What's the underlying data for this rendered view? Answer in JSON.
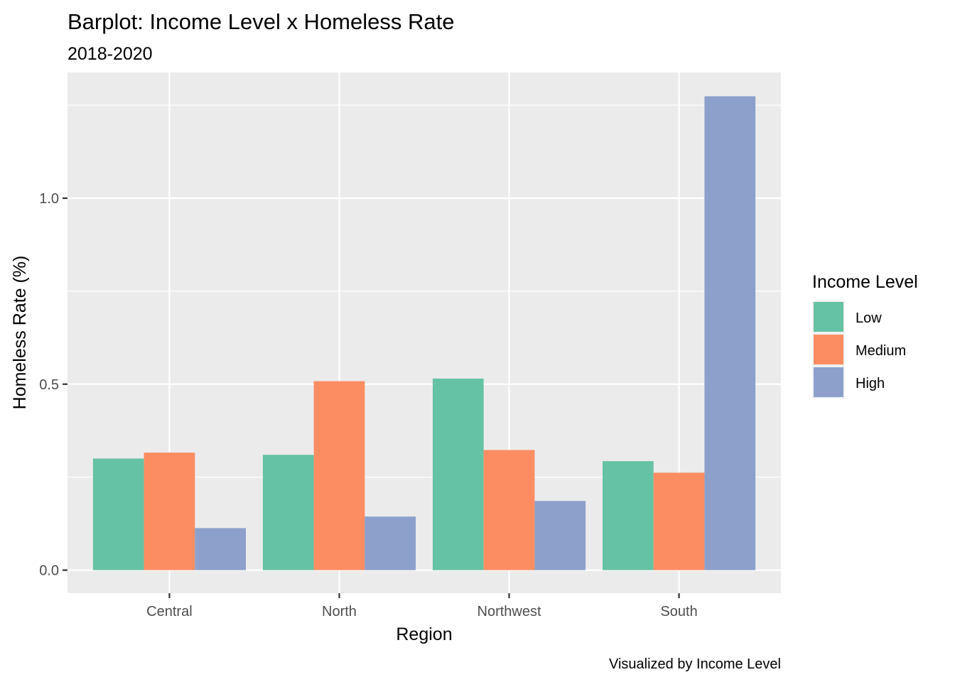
{
  "chart_data": {
    "type": "bar",
    "title": "Barplot: Income Level x Homeless Rate",
    "subtitle": "2018-2020",
    "xlabel": "Region",
    "ylabel": "Homeless Rate (%)",
    "caption": "Visualized by Income Level",
    "categories": [
      "Central",
      "North",
      "Northwest",
      "South"
    ],
    "series": [
      {
        "name": "Low",
        "color": "#66c2a5",
        "values": [
          0.3,
          0.31,
          0.515,
          0.293
        ]
      },
      {
        "name": "Medium",
        "color": "#fc8d62",
        "values": [
          0.316,
          0.508,
          0.323,
          0.262
        ]
      },
      {
        "name": "High",
        "color": "#8da0cb",
        "values": [
          0.113,
          0.144,
          0.186,
          1.274
        ]
      }
    ],
    "ylim": [
      -0.062,
      1.338
    ],
    "y_ticks": [
      0.0,
      0.5,
      1.0
    ],
    "y_tick_labels": [
      "0.0",
      "0.5",
      "1.0"
    ],
    "grid": true,
    "legend": {
      "title": "Income Level",
      "position": "right"
    }
  }
}
